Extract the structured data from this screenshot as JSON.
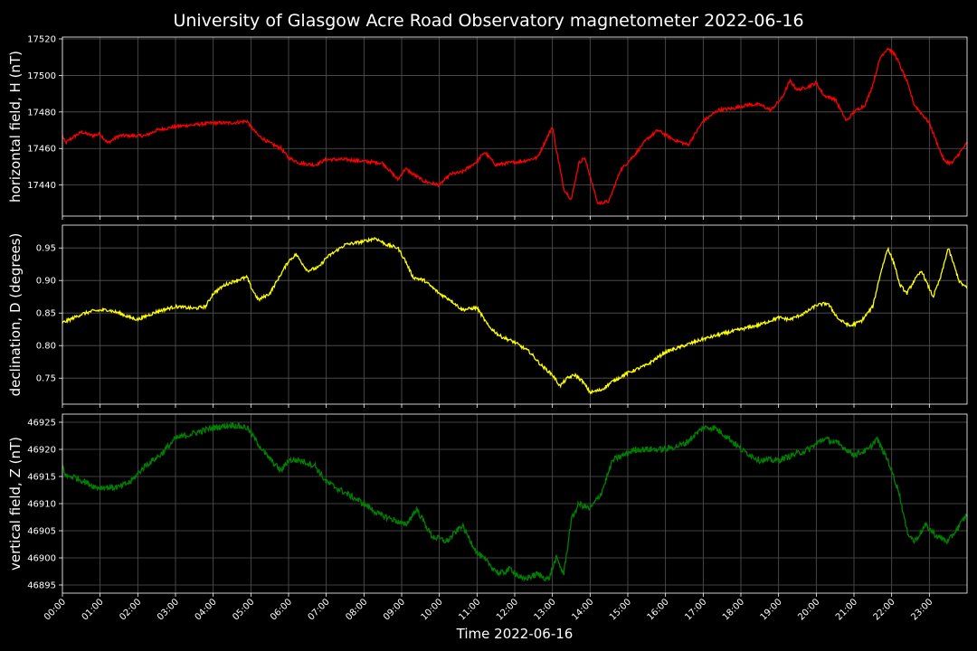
{
  "figure": {
    "title": "University of Glasgow Acre Road Observatory magnetometer 2022-06-16",
    "xlabel": "Time 2022-06-16",
    "background": "#000000",
    "grid_color": "#555555",
    "axes_color": "#ffffff"
  },
  "chart_data": [
    {
      "type": "line",
      "ylabel": "horizontal field, H (nT)",
      "color": "#ff0000",
      "xlim": [
        0,
        24
      ],
      "ylim": [
        17423,
        17521
      ],
      "yticks": [
        17440,
        17460,
        17480,
        17500,
        17520
      ],
      "xticks": [
        "00:00",
        "01:00",
        "02:00",
        "03:00",
        "04:00",
        "05:00",
        "06:00",
        "07:00",
        "08:00",
        "09:00",
        "10:00",
        "11:00",
        "12:00",
        "13:00",
        "14:00",
        "15:00",
        "16:00",
        "17:00",
        "18:00",
        "19:00",
        "20:00",
        "21:00",
        "22:00",
        "23:00"
      ],
      "grid": true,
      "series": [
        {
          "x": [
            0,
            0.08,
            0.2,
            0.5,
            0.8,
            1.0,
            1.2,
            1.5,
            1.8,
            2.2,
            2.5,
            3.0,
            3.5,
            4.0,
            4.5,
            4.9,
            5.0,
            5.2,
            5.5,
            5.8,
            6.0,
            6.3,
            6.7,
            7.0,
            7.5,
            8.0,
            8.5,
            8.9,
            9.1,
            9.3,
            9.6,
            10.0,
            10.3,
            10.6,
            11.0,
            11.2,
            11.5,
            11.8,
            12.2,
            12.6,
            13.0,
            13.1,
            13.3,
            13.5,
            13.7,
            13.85,
            14.0,
            14.2,
            14.5,
            14.8,
            15.2,
            15.5,
            15.8,
            16.2,
            16.6,
            17.0,
            17.4,
            17.8,
            18.2,
            18.5,
            18.8,
            19.1,
            19.3,
            19.5,
            19.8,
            20.0,
            20.2,
            20.5,
            20.8,
            21.0,
            21.3,
            21.5,
            21.7,
            21.9,
            22.1,
            22.4,
            22.6,
            23.0,
            23.2,
            23.4,
            23.6,
            24.0
          ],
          "y": [
            17467,
            17463,
            17465,
            17469,
            17467,
            17468,
            17463,
            17467,
            17467,
            17467,
            17470,
            17472,
            17473,
            17474,
            17474,
            17475,
            17472,
            17467,
            17463,
            17460,
            17455,
            17452,
            17451,
            17454,
            17454,
            17453,
            17452,
            17443,
            17449,
            17446,
            17442,
            17440,
            17446,
            17447,
            17453,
            17458,
            17451,
            17452,
            17453,
            17455,
            17472,
            17460,
            17438,
            17432,
            17452,
            17455,
            17445,
            17430,
            17431,
            17448,
            17457,
            17465,
            17470,
            17465,
            17462,
            17475,
            17481,
            17482,
            17484,
            17484,
            17481,
            17488,
            17497,
            17492,
            17494,
            17496,
            17489,
            17487,
            17475,
            17480,
            17484,
            17495,
            17510,
            17515,
            17511,
            17497,
            17484,
            17474,
            17463,
            17453,
            17452,
            17463
          ]
        }
      ]
    },
    {
      "type": "line",
      "ylabel": "declination, D (degrees)",
      "color": "#ffff00",
      "xlim": [
        0,
        24
      ],
      "ylim": [
        0.71,
        0.985
      ],
      "yticks": [
        0.75,
        0.8,
        0.85,
        0.9,
        0.95
      ],
      "xticks": [
        "00:00",
        "01:00",
        "02:00",
        "03:00",
        "04:00",
        "05:00",
        "06:00",
        "07:00",
        "08:00",
        "09:00",
        "10:00",
        "11:00",
        "12:00",
        "13:00",
        "14:00",
        "15:00",
        "16:00",
        "17:00",
        "18:00",
        "19:00",
        "20:00",
        "21:00",
        "22:00",
        "23:00"
      ],
      "grid": true,
      "series": [
        {
          "x": [
            0,
            0.2,
            0.5,
            0.8,
            1.2,
            1.5,
            1.8,
            2.0,
            2.5,
            3.0,
            3.5,
            3.8,
            4.0,
            4.3,
            4.6,
            4.9,
            5.0,
            5.2,
            5.5,
            5.8,
            6.0,
            6.2,
            6.5,
            6.8,
            7.0,
            7.5,
            8.0,
            8.3,
            8.6,
            8.9,
            9.1,
            9.3,
            9.6,
            10.0,
            10.3,
            10.6,
            11.0,
            11.3,
            11.6,
            12.0,
            12.4,
            12.7,
            13.0,
            13.2,
            13.4,
            13.6,
            13.8,
            14.0,
            14.3,
            14.6,
            15.0,
            15.5,
            16.0,
            16.5,
            17.0,
            17.5,
            18.0,
            18.5,
            19.0,
            19.3,
            19.7,
            20.0,
            20.3,
            20.6,
            20.9,
            21.2,
            21.5,
            21.7,
            21.9,
            22.1,
            22.2,
            22.4,
            22.6,
            22.8,
            22.9,
            23.1,
            23.3,
            23.5,
            23.8,
            24.0
          ],
          "y": [
            0.835,
            0.84,
            0.848,
            0.853,
            0.855,
            0.85,
            0.843,
            0.84,
            0.852,
            0.86,
            0.857,
            0.86,
            0.88,
            0.893,
            0.9,
            0.905,
            0.89,
            0.87,
            0.88,
            0.91,
            0.93,
            0.94,
            0.915,
            0.92,
            0.935,
            0.955,
            0.96,
            0.965,
            0.955,
            0.95,
            0.93,
            0.905,
            0.9,
            0.88,
            0.87,
            0.855,
            0.858,
            0.83,
            0.815,
            0.805,
            0.79,
            0.77,
            0.755,
            0.738,
            0.75,
            0.755,
            0.745,
            0.728,
            0.732,
            0.745,
            0.758,
            0.77,
            0.79,
            0.8,
            0.81,
            0.818,
            0.825,
            0.832,
            0.843,
            0.84,
            0.85,
            0.862,
            0.865,
            0.84,
            0.83,
            0.838,
            0.86,
            0.91,
            0.95,
            0.92,
            0.895,
            0.88,
            0.9,
            0.915,
            0.9,
            0.875,
            0.905,
            0.95,
            0.898,
            0.888
          ]
        }
      ]
    },
    {
      "type": "line",
      "ylabel": "vertical field, Z (nT)",
      "color": "#008000",
      "xlim": [
        0,
        24
      ],
      "ylim": [
        46893.5,
        46926.5
      ],
      "yticks": [
        46895,
        46900,
        46905,
        46910,
        46915,
        46920,
        46925
      ],
      "xticks": [
        "00:00",
        "01:00",
        "02:00",
        "03:00",
        "04:00",
        "05:00",
        "06:00",
        "07:00",
        "08:00",
        "09:00",
        "10:00",
        "11:00",
        "12:00",
        "13:00",
        "14:00",
        "15:00",
        "16:00",
        "17:00",
        "18:00",
        "19:00",
        "20:00",
        "21:00",
        "22:00",
        "23:00"
      ],
      "grid": true,
      "series": [
        {
          "x": [
            0,
            0.1,
            0.3,
            0.6,
            0.9,
            1.2,
            1.5,
            1.8,
            2.2,
            2.6,
            3.0,
            3.5,
            4.0,
            4.5,
            4.9,
            5.1,
            5.4,
            5.8,
            6.0,
            6.3,
            6.7,
            7.0,
            7.5,
            8.0,
            8.4,
            8.8,
            9.1,
            9.4,
            9.8,
            10.2,
            10.6,
            11.0,
            11.3,
            11.6,
            11.9,
            12.2,
            12.6,
            12.9,
            13.1,
            13.3,
            13.5,
            13.7,
            14.0,
            14.3,
            14.6,
            14.9,
            15.2,
            15.6,
            16.0,
            16.5,
            17.0,
            17.3,
            17.7,
            18.0,
            18.5,
            19.0,
            19.4,
            19.8,
            20.2,
            20.6,
            21.0,
            21.4,
            21.6,
            21.9,
            22.2,
            22.4,
            22.6,
            22.9,
            23.2,
            23.5,
            23.8,
            24.0
          ],
          "y": [
            46917,
            46915,
            46915,
            46914,
            46913,
            46913,
            46913,
            46914,
            46917,
            46919,
            46922,
            46923,
            46924,
            46924.5,
            46924,
            46922,
            46919,
            46916,
            46918,
            46918,
            46917,
            46914,
            46912,
            46910,
            46908,
            46907,
            46906,
            46909,
            46904,
            46903,
            46906,
            46901,
            46899,
            46897,
            46898,
            46896,
            46897,
            46896,
            46900,
            46897,
            46907,
            46910,
            46909,
            46912,
            46918,
            46919,
            46920,
            46920,
            46920,
            46921,
            46924,
            46924,
            46922,
            46920,
            46918,
            46918,
            46919,
            46920,
            46922,
            46921,
            46919,
            46920,
            46922,
            46918,
            46912,
            46905,
            46903,
            46906,
            46904,
            46903,
            46906,
            46908
          ]
        }
      ]
    }
  ]
}
